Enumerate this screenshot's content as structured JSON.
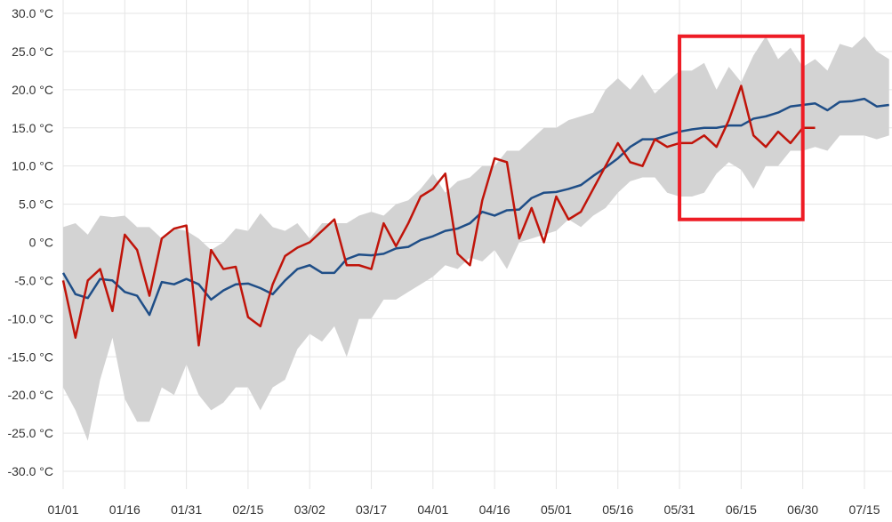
{
  "chart_data": {
    "type": "line",
    "title": "",
    "xlabel": "",
    "ylabel": "",
    "ylim": [
      -30,
      30
    ],
    "xlim": [
      "01/01",
      "07/21"
    ],
    "grid": true,
    "legend": "none",
    "y_ticks": [
      "30.0 °C",
      "25.0 °C",
      "20.0 °C",
      "15.0 °C",
      "10.0 °C",
      "5.0 °C",
      "0 °C",
      "-5.0 °C",
      "-10.0 °C",
      "-15.0 °C",
      "-20.0 °C",
      "-25.0 °C",
      "-30.0 °C"
    ],
    "y_tick_values": [
      30,
      25,
      20,
      15,
      10,
      5,
      0,
      -5,
      -10,
      -15,
      -20,
      -25,
      -30
    ],
    "x_ticks": [
      "01/01",
      "01/16",
      "01/31",
      "02/15",
      "03/02",
      "03/17",
      "04/01",
      "04/16",
      "05/01",
      "05/16",
      "05/31",
      "06/15",
      "06/30",
      "07/15"
    ],
    "x": [
      "01/01",
      "01/04",
      "01/07",
      "01/10",
      "01/13",
      "01/16",
      "01/19",
      "01/22",
      "01/25",
      "01/28",
      "01/31",
      "02/03",
      "02/06",
      "02/09",
      "02/12",
      "02/15",
      "02/18",
      "02/21",
      "02/24",
      "02/27",
      "03/02",
      "03/05",
      "03/08",
      "03/11",
      "03/14",
      "03/17",
      "03/20",
      "03/23",
      "03/26",
      "03/29",
      "04/01",
      "04/04",
      "04/07",
      "04/10",
      "04/13",
      "04/16",
      "04/19",
      "04/22",
      "04/25",
      "04/28",
      "05/01",
      "05/04",
      "05/07",
      "05/10",
      "05/13",
      "05/16",
      "05/19",
      "05/22",
      "05/25",
      "05/28",
      "05/31",
      "06/03",
      "06/06",
      "06/09",
      "06/12",
      "06/15",
      "06/18",
      "06/21",
      "06/24",
      "06/27",
      "06/30",
      "07/03",
      "07/06",
      "07/09",
      "07/12",
      "07/15",
      "07/18",
      "07/21"
    ],
    "band": {
      "color": "#d3d3d3",
      "upper": [
        2,
        2.5,
        1,
        3.5,
        3.3,
        3.5,
        2,
        2,
        0.5,
        1.8,
        1.5,
        0.5,
        -1,
        0,
        1.8,
        1.5,
        3.8,
        2,
        1.5,
        2.5,
        0.5,
        2.5,
        2.5,
        2.5,
        3.5,
        4,
        3.5,
        5,
        5.5,
        7,
        9,
        6.5,
        8,
        8.5,
        10,
        10,
        12,
        12,
        13.5,
        15,
        15,
        16,
        16.5,
        17,
        20,
        21.5,
        20,
        22,
        19.5,
        21,
        22.5,
        22.5,
        23.5,
        20,
        23,
        21,
        24.5,
        27,
        24,
        25.5,
        23,
        24,
        22.5,
        26,
        25.5,
        27,
        25,
        24
      ],
      "lower": [
        -19,
        -22,
        -26,
        -18,
        -12.5,
        -20.5,
        -23.5,
        -23.5,
        -19,
        -20,
        -16,
        -20,
        -22,
        -21,
        -19,
        -19,
        -22,
        -19,
        -18,
        -14,
        -12,
        -13,
        -11,
        -15,
        -10,
        -10,
        -7.5,
        -7.5,
        -6.5,
        -5.5,
        -4.5,
        -3,
        -3.5,
        -2,
        -2.5,
        -1,
        -3.5,
        0,
        0.5,
        1,
        1.5,
        3,
        2,
        3.5,
        4.5,
        6.5,
        8,
        8.5,
        8.5,
        6.5,
        6,
        6,
        6.5,
        9,
        10.5,
        9.5,
        7,
        10,
        10,
        12,
        12,
        12.5,
        12,
        14,
        14,
        14,
        13.5,
        14
      ]
    },
    "series": [
      {
        "color": "#1f4e87",
        "values": [
          -4,
          -6.8,
          -7.3,
          -4.8,
          -5,
          -6.5,
          -7,
          -9.5,
          -5.2,
          -5.5,
          -4.8,
          -5.5,
          -7.5,
          -6.3,
          -5.5,
          -5.4,
          -6,
          -6.8,
          -5,
          -3.5,
          -3,
          -4,
          -4,
          -2.2,
          -1.6,
          -1.7,
          -1.5,
          -0.8,
          -0.6,
          0.3,
          0.8,
          1.5,
          1.8,
          2.5,
          4,
          3.5,
          4.2,
          4.3,
          5.8,
          6.5,
          6.6,
          7,
          7.5,
          8.7,
          9.8,
          11,
          12.5,
          13.5,
          13.5,
          14,
          14.5,
          14.8,
          15,
          15,
          15.3,
          15.3,
          16.2,
          16.5,
          17,
          17.8,
          18,
          18.2,
          17.3,
          18.4,
          18.5,
          18.8,
          17.8,
          18
        ]
      },
      {
        "color": "#c0140a",
        "values": [
          -5,
          -12.5,
          -5,
          -3.5,
          -9,
          1,
          -1,
          -7,
          0.5,
          1.8,
          2.2,
          -13.5,
          -1,
          -3.5,
          -3.2,
          -9.8,
          -11,
          -5.5,
          -1.8,
          -0.7,
          0,
          1.5,
          3,
          -3,
          -3,
          -3.5,
          2.5,
          -0.5,
          2.5,
          6,
          7,
          9,
          -1.5,
          -3,
          5.5,
          11,
          10.5,
          0.5,
          4.5,
          0,
          6,
          3,
          4,
          7,
          10,
          13,
          10.5,
          10,
          13.5,
          12.5,
          13,
          13,
          14,
          12.5,
          16,
          20.5,
          14,
          12.5,
          14.5,
          13,
          15,
          15,
          null,
          null,
          null,
          null,
          null,
          null
        ]
      }
    ],
    "highlight": {
      "color": "#ee1c25",
      "x": [
        "05/31",
        "06/30"
      ],
      "y": [
        3,
        27
      ]
    }
  }
}
